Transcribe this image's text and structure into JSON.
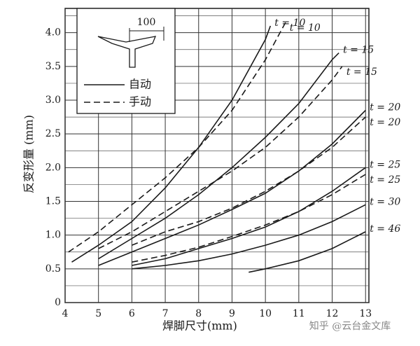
{
  "chart_data": {
    "type": "line",
    "xlabel": "焊脚尺寸(mm)",
    "ylabel": "反变形量 (mm)",
    "xlim": [
      4,
      13.1
    ],
    "ylim": [
      0,
      4.36
    ],
    "xticks": [
      4,
      5,
      6,
      7,
      8,
      9,
      10,
      11,
      12,
      13
    ],
    "yticks": [
      0,
      0.5,
      {
        "value": 1,
        "label": "1.0"
      },
      1.5,
      {
        "value": 2,
        "label": "2.0"
      },
      2.5,
      {
        "value": 3,
        "label": "3.0"
      },
      3.5,
      {
        "value": 4,
        "label": "4.0"
      }
    ],
    "y_minor_grid": [
      0.25,
      0.75,
      1.25,
      1.75,
      2.25,
      2.75,
      3.25,
      3.75,
      4.25
    ],
    "grid": true,
    "color": "#1a1a1a",
    "legend": [
      {
        "label": "自动",
        "dash": "solid"
      },
      {
        "label": "手动",
        "dash": "dashed"
      }
    ],
    "inset_label": "100",
    "watermark": "知乎 @云台金文库",
    "series": [
      {
        "name": "t = 10",
        "dash": "solid",
        "x": [
          4.2,
          5,
          6,
          7,
          8,
          9,
          10,
          10.15
        ],
        "values": [
          0.6,
          0.85,
          1.2,
          1.7,
          2.3,
          3.0,
          3.9,
          4.1
        ]
      },
      {
        "name": "t = 10",
        "dash": "dashed",
        "x": [
          4.1,
          5,
          6,
          7,
          8,
          9,
          10,
          10.6
        ],
        "values": [
          0.75,
          1.05,
          1.45,
          1.85,
          2.3,
          2.85,
          3.6,
          4.15
        ]
      },
      {
        "name": "t = 15",
        "dash": "solid",
        "x": [
          5,
          6,
          7,
          8,
          9,
          10,
          11,
          12,
          12.2
        ],
        "values": [
          0.65,
          0.95,
          1.25,
          1.6,
          2.0,
          2.45,
          2.95,
          3.6,
          3.7
        ]
      },
      {
        "name": "t = 15",
        "dash": "dashed",
        "x": [
          5,
          6,
          7,
          8,
          9,
          10,
          11,
          12,
          12.3
        ],
        "values": [
          0.8,
          1.05,
          1.35,
          1.65,
          1.95,
          2.3,
          2.75,
          3.3,
          3.5
        ]
      },
      {
        "name": "t = 20",
        "dash": "solid",
        "x": [
          5,
          6,
          7,
          8,
          9,
          10,
          11,
          12,
          13
        ],
        "values": [
          0.55,
          0.75,
          0.95,
          1.15,
          1.38,
          1.62,
          1.95,
          2.35,
          2.85
        ]
      },
      {
        "name": "t = 20",
        "dash": "dashed",
        "x": [
          6,
          7,
          8,
          9,
          10,
          11,
          12,
          13
        ],
        "values": [
          0.85,
          1.05,
          1.2,
          1.4,
          1.65,
          1.95,
          2.3,
          2.75
        ]
      },
      {
        "name": "t = 25",
        "dash": "solid",
        "x": [
          6,
          7,
          8,
          9,
          10,
          11,
          12,
          13
        ],
        "values": [
          0.55,
          0.65,
          0.8,
          0.95,
          1.12,
          1.35,
          1.65,
          2.0
        ]
      },
      {
        "name": "t = 25",
        "dash": "dashed",
        "x": [
          6,
          7,
          8,
          9,
          10,
          11,
          12,
          13
        ],
        "values": [
          0.6,
          0.7,
          0.82,
          0.98,
          1.15,
          1.35,
          1.6,
          1.9
        ]
      },
      {
        "name": "t = 30",
        "dash": "solid",
        "x": [
          6,
          7,
          8,
          9,
          10,
          11,
          12,
          13
        ],
        "values": [
          0.5,
          0.55,
          0.62,
          0.72,
          0.85,
          1.0,
          1.2,
          1.45
        ]
      },
      {
        "name": "t = 46",
        "dash": "solid",
        "x": [
          9.5,
          10,
          11,
          12,
          13
        ],
        "values": [
          0.45,
          0.5,
          0.62,
          0.8,
          1.05
        ]
      }
    ]
  }
}
